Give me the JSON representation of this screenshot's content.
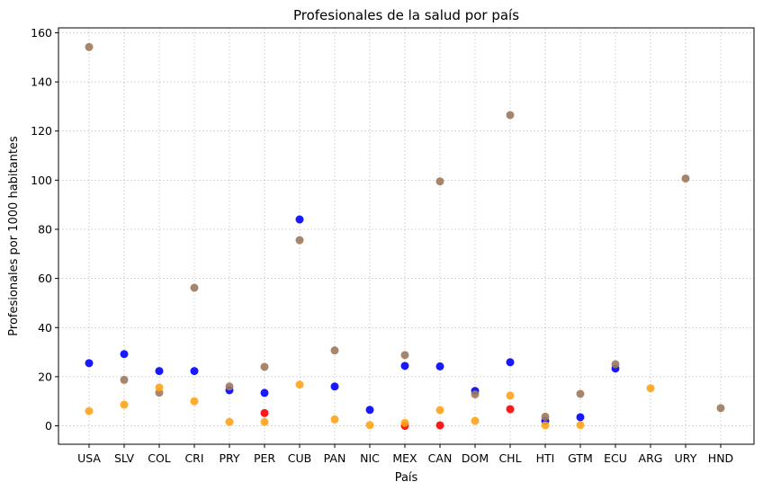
{
  "chart_data": {
    "type": "scatter",
    "title": "Profesionales de la salud por país",
    "xlabel": "País",
    "ylabel": "Profesionales por 1000 habitantes",
    "categories": [
      "USA",
      "SLV",
      "COL",
      "CRI",
      "PRY",
      "PER",
      "CUB",
      "PAN",
      "NIC",
      "MEX",
      "CAN",
      "DOM",
      "CHL",
      "HTI",
      "GTM",
      "ECU",
      "ARG",
      "URY",
      "HND"
    ],
    "ylim": [
      -7.5,
      162
    ],
    "yticks": [
      0,
      20,
      40,
      60,
      80,
      100,
      120,
      140,
      160
    ],
    "grid": true,
    "series": [
      {
        "color": "#0000ff",
        "points": [
          {
            "x": "USA",
            "y": 25.5
          },
          {
            "x": "SLV",
            "y": 29.2
          },
          {
            "x": "COL",
            "y": 22.3
          },
          {
            "x": "CRI",
            "y": 22.3
          },
          {
            "x": "PRY",
            "y": 14.5
          },
          {
            "x": "PER",
            "y": 13.4
          },
          {
            "x": "CUB",
            "y": 84.0
          },
          {
            "x": "PAN",
            "y": 16.0
          },
          {
            "x": "NIC",
            "y": 6.5
          },
          {
            "x": "MEX",
            "y": 24.4
          },
          {
            "x": "CAN",
            "y": 24.2
          },
          {
            "x": "DOM",
            "y": 14.2
          },
          {
            "x": "CHL",
            "y": 25.9
          },
          {
            "x": "HTI",
            "y": 2.0
          },
          {
            "x": "GTM",
            "y": 3.5
          },
          {
            "x": "ECU",
            "y": 23.3
          }
        ]
      },
      {
        "color": "#ff0000",
        "points": [
          {
            "x": "PER",
            "y": 5.2
          },
          {
            "x": "MEX",
            "y": 0.0
          },
          {
            "x": "CAN",
            "y": 0.2
          },
          {
            "x": "CHL",
            "y": 6.8
          }
        ]
      },
      {
        "color": "#9c7a5e",
        "points": [
          {
            "x": "USA",
            "y": 154.2
          },
          {
            "x": "SLV",
            "y": 18.7
          },
          {
            "x": "COL",
            "y": 13.5
          },
          {
            "x": "CRI",
            "y": 56.2
          },
          {
            "x": "PRY",
            "y": 16.0
          },
          {
            "x": "PER",
            "y": 24.0
          },
          {
            "x": "CUB",
            "y": 75.6
          },
          {
            "x": "PAN",
            "y": 30.7
          },
          {
            "x": "MEX",
            "y": 28.8
          },
          {
            "x": "CAN",
            "y": 99.5
          },
          {
            "x": "DOM",
            "y": 12.8
          },
          {
            "x": "CHL",
            "y": 126.5
          },
          {
            "x": "HTI",
            "y": 3.7
          },
          {
            "x": "GTM",
            "y": 13.0
          },
          {
            "x": "ECU",
            "y": 25.1
          },
          {
            "x": "URY",
            "y": 100.7
          },
          {
            "x": "HND",
            "y": 7.2
          }
        ]
      },
      {
        "color": "#ffa31a",
        "points": [
          {
            "x": "USA",
            "y": 6.0
          },
          {
            "x": "SLV",
            "y": 8.6
          },
          {
            "x": "COL",
            "y": 15.6
          },
          {
            "x": "CRI",
            "y": 10.0
          },
          {
            "x": "PRY",
            "y": 1.6
          },
          {
            "x": "PER",
            "y": 1.6
          },
          {
            "x": "CUB",
            "y": 16.8
          },
          {
            "x": "PAN",
            "y": 2.6
          },
          {
            "x": "NIC",
            "y": 0.3
          },
          {
            "x": "MEX",
            "y": 1.2
          },
          {
            "x": "CAN",
            "y": 6.4
          },
          {
            "x": "DOM",
            "y": 2.0
          },
          {
            "x": "CHL",
            "y": 12.3
          },
          {
            "x": "HTI",
            "y": 0.2
          },
          {
            "x": "GTM",
            "y": 0.3
          },
          {
            "x": "ARG",
            "y": 15.3
          }
        ]
      }
    ]
  }
}
